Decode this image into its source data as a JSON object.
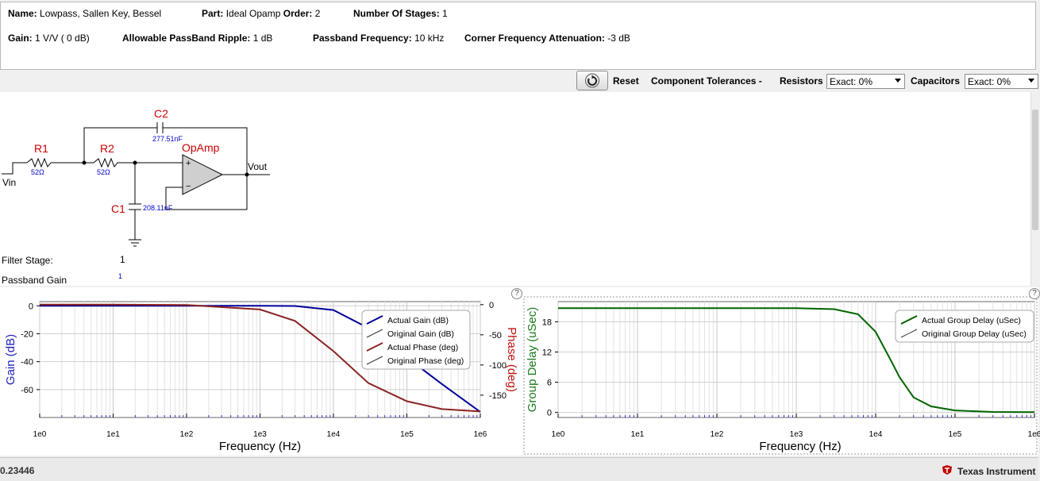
{
  "filter_info": {
    "name_label": "Name:",
    "name_value": "Lowpass, Sallen Key, Bessel",
    "part_label": "Part:",
    "part_value": "Ideal Opamp",
    "order_label": "Order:",
    "order_value": "2",
    "stages_label": "Number Of Stages:",
    "stages_value": "1",
    "gain_label": "Gain:",
    "gain_value": "1 V/V ( 0 dB)",
    "ripple_label": "Allowable PassBand Ripple:",
    "ripple_value": "1 dB",
    "passband_freq_label": "Passband Frequency:",
    "passband_freq_value": "10 kHz",
    "corner_label": "Corner Frequency Attenuation:",
    "corner_value": "-3 dB"
  },
  "toolbar": {
    "reset_label": "Reset",
    "tolerances_label": "Component Tolerances -",
    "resistors_label": "Resistors",
    "resistors_value": "Exact: 0%",
    "capacitors_label": "Capacitors",
    "capacitors_value": "Exact: 0%"
  },
  "schematic": {
    "r1_name": "R1",
    "r1_value": "52Ω",
    "r2_name": "R2",
    "r2_value": "52Ω",
    "c1_name": "C1",
    "c1_value": "208.11nF",
    "c2_name": "C2",
    "c2_value": "277.51nF",
    "opamp_name": "OpAmp",
    "plus": "+",
    "minus": "−",
    "vin": "Vin",
    "vout": "Vout",
    "stage_label": "Filter Stage:",
    "stage_value": "1",
    "passband_gain_label": "Passband Gain",
    "passband_gain_value": "1",
    "colors": {
      "name": "#cc0000",
      "value": "#0000cc"
    }
  },
  "gain_chart": {
    "help": "?",
    "left_axis_label": "Gain (dB)",
    "right_axis_label": "Phase (deg)",
    "x_axis_label": "Frequency (Hz)",
    "left_ticks": [
      "0",
      "-20",
      "-40",
      "-60"
    ],
    "right_ticks": [
      "0",
      "-50",
      "-100",
      "-150"
    ],
    "x_ticks": [
      "1e0",
      "1e1",
      "1e2",
      "1e3",
      "1e4",
      "1e5",
      "1e6"
    ],
    "legend": [
      "Actual Gain (dB)",
      "Original Gain (dB)",
      "Actual Phase (deg)",
      "Original Phase (deg)"
    ],
    "colors": {
      "gain": "#000099",
      "phase": "#8b2323",
      "orig": "#333333",
      "left_label": "#2020c0",
      "right_label": "#c01010"
    }
  },
  "delay_chart": {
    "help": "?",
    "y_axis_label": "Group Delay (uSec)",
    "x_axis_label": "Frequency (Hz)",
    "y_ticks": [
      "0",
      "6",
      "12",
      "18"
    ],
    "x_ticks": [
      "1e0",
      "1e1",
      "1e2",
      "1e3",
      "1e4",
      "1e5",
      "1e6"
    ],
    "legend": [
      "Actual Group Delay (uSec)",
      "Original Group Delay (uSec)"
    ],
    "colors": {
      "delay": "#006400",
      "y_label": "#1a7a1a"
    }
  },
  "chart_data": [
    {
      "type": "line",
      "xlabel": "Frequency (Hz)",
      "ylabel": "Gain (dB)",
      "y2label": "Phase (deg)",
      "xscale": "log",
      "xlim": [
        1,
        1000000
      ],
      "ylim": [
        -80,
        3
      ],
      "y2lim": [
        -187,
        5
      ],
      "grid": true,
      "legend_position": "top-right",
      "series": [
        {
          "name": "Actual Gain (dB)",
          "axis": "left",
          "x": [
            1,
            10,
            100,
            1000,
            3000,
            10000,
            30000,
            100000,
            300000,
            1000000
          ],
          "y": [
            0,
            0,
            0,
            0,
            -0.1,
            -3,
            -16,
            -37,
            -56,
            -76
          ]
        },
        {
          "name": "Original Gain (dB)",
          "axis": "left",
          "x": [
            1,
            10,
            100,
            1000,
            3000,
            10000,
            30000,
            100000,
            300000,
            1000000
          ],
          "y": [
            0,
            0,
            0,
            0,
            -0.1,
            -3,
            -16,
            -37,
            -56,
            -76
          ]
        },
        {
          "name": "Actual Phase (deg)",
          "axis": "right",
          "x": [
            1,
            10,
            100,
            1000,
            3000,
            10000,
            30000,
            100000,
            300000,
            1000000
          ],
          "y": [
            0,
            0,
            -0.5,
            -8,
            -27,
            -77,
            -130,
            -160,
            -173,
            -177
          ]
        },
        {
          "name": "Original Phase (deg)",
          "axis": "right",
          "x": [
            1,
            10,
            100,
            1000,
            3000,
            10000,
            30000,
            100000,
            300000,
            1000000
          ],
          "y": [
            0,
            0,
            -0.5,
            -8,
            -27,
            -77,
            -130,
            -160,
            -173,
            -177
          ]
        }
      ]
    },
    {
      "type": "line",
      "xlabel": "Frequency (Hz)",
      "ylabel": "Group Delay (uSec)",
      "xscale": "log",
      "xlim": [
        1,
        1000000
      ],
      "ylim": [
        -1,
        22
      ],
      "grid": true,
      "legend_position": "top-right",
      "series": [
        {
          "name": "Actual Group Delay (uSec)",
          "x": [
            1,
            10,
            100,
            1000,
            3000,
            6000,
            10000,
            15000,
            20000,
            30000,
            50000,
            100000,
            300000,
            1000000
          ],
          "y": [
            20.7,
            20.7,
            20.7,
            20.7,
            20.5,
            19.5,
            16,
            10.8,
            7,
            3,
            1.2,
            0.4,
            0.1,
            0.05
          ]
        },
        {
          "name": "Original Group Delay (uSec)",
          "x": [
            1,
            10,
            100,
            1000,
            3000,
            6000,
            10000,
            15000,
            20000,
            30000,
            50000,
            100000,
            300000,
            1000000
          ],
          "y": [
            20.7,
            20.7,
            20.7,
            20.7,
            20.5,
            19.5,
            16,
            10.8,
            7,
            3,
            1.2,
            0.4,
            0.1,
            0.05
          ]
        }
      ]
    }
  ],
  "status": {
    "left_text": "0.23446",
    "vendor_text": "Texas Instrument"
  }
}
